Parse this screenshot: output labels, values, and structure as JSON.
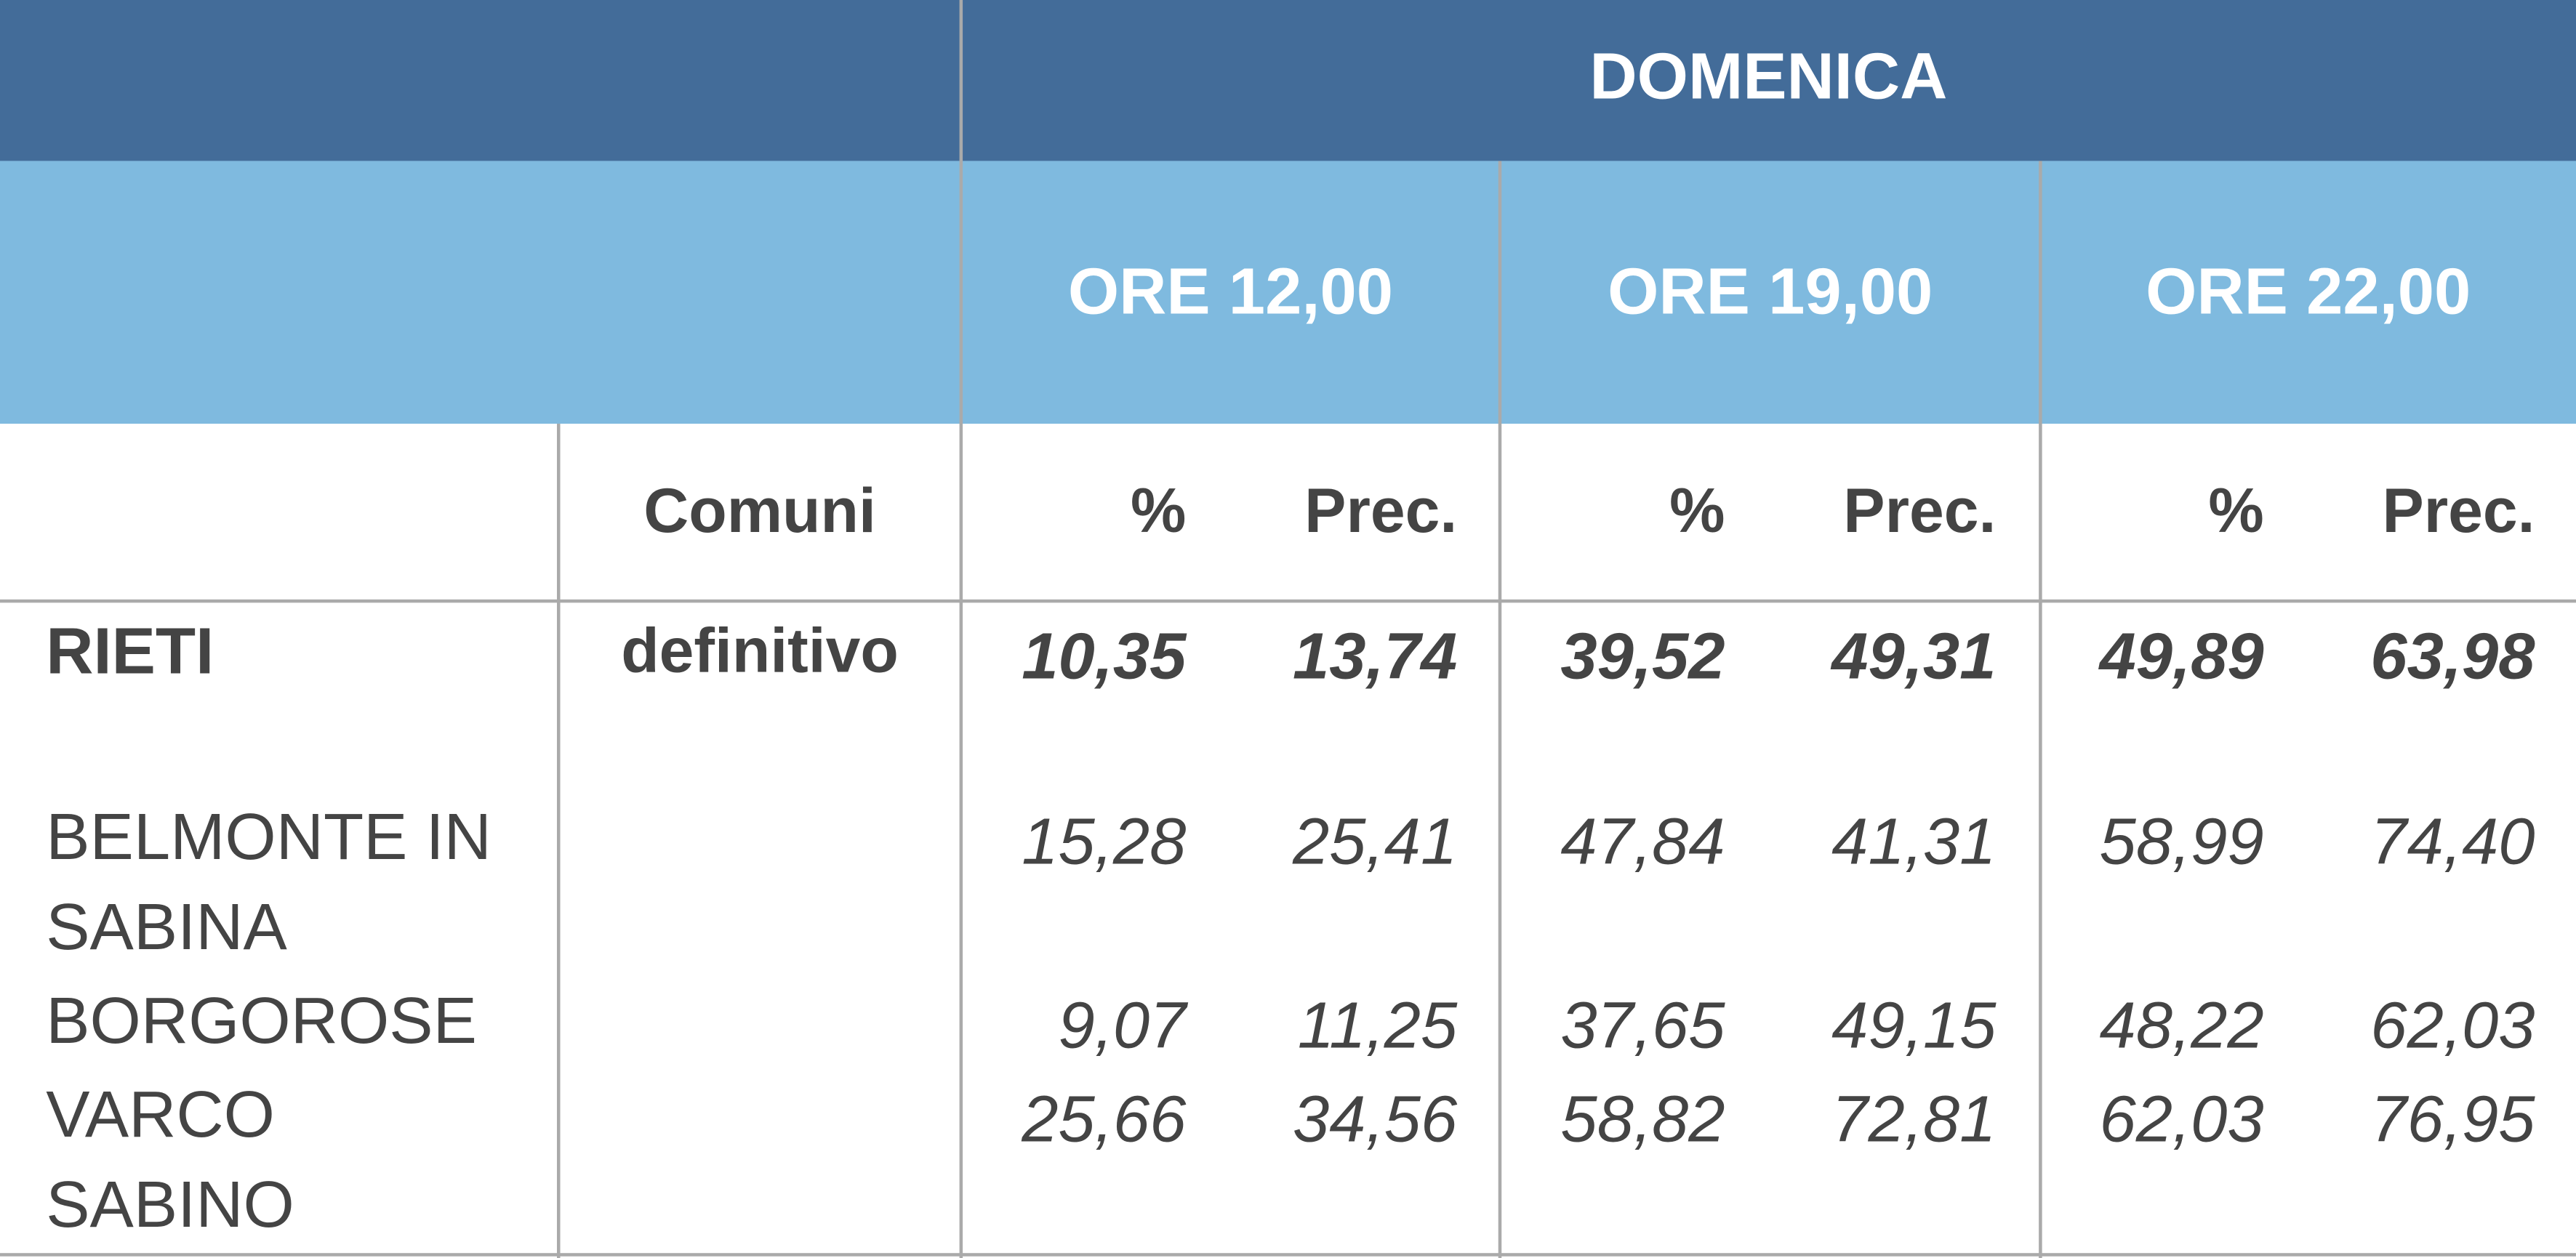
{
  "header": {
    "title": "DOMENICA",
    "times": [
      "ORE 12,00",
      "ORE 19,00",
      "ORE 22,00"
    ]
  },
  "table": {
    "columns": [
      "Comuni",
      "%",
      "Prec.",
      "%",
      "Prec.",
      "%",
      "Prec."
    ],
    "rows": [
      {
        "name": "RIETI",
        "status": "definitivo",
        "values": [
          "10,35",
          "13,74",
          "39,52",
          "49,31",
          "49,89",
          "63,98"
        ]
      },
      {
        "name": "BELMONTE IN SABINA",
        "values": [
          "15,28",
          "25,41",
          "47,84",
          "41,31",
          "58,99",
          "74,40"
        ]
      },
      {
        "name": "BORGOROSE",
        "values": [
          "9,07",
          "11,25",
          "37,65",
          "49,15",
          "48,22",
          "62,03"
        ]
      },
      {
        "name": "VARCO SABINO",
        "values": [
          "25,66",
          "34,56",
          "58,82",
          "72,81",
          "62,03",
          "76,95"
        ]
      }
    ]
  }
}
